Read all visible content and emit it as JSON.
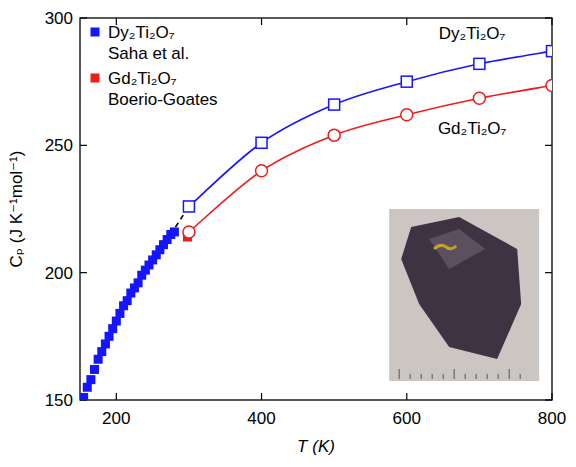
{
  "chart_data": {
    "type": "line",
    "x_label": "T (K)",
    "y_label": "Cₚ (J K⁻¹mol⁻¹)",
    "xlim": [
      150,
      800
    ],
    "ylim": [
      150,
      300
    ],
    "xticks": [
      200,
      400,
      600,
      800
    ],
    "yticks": [
      150,
      200,
      250,
      300
    ],
    "grid": false,
    "legend": "upper left",
    "series": [
      {
        "name": "Dy₂Ti₂O₇ Saha et al.",
        "type": "scatter",
        "marker": "square",
        "color": "#1515ff",
        "x": [
          155,
          160,
          165,
          170,
          175,
          180,
          185,
          190,
          195,
          200,
          205,
          210,
          215,
          220,
          225,
          230,
          235,
          240,
          245,
          250,
          255,
          260,
          265,
          270,
          275,
          280
        ],
        "values": [
          151,
          155,
          158,
          162,
          166,
          169,
          172,
          175,
          178,
          181,
          184,
          187,
          189,
          192,
          194,
          196,
          199,
          201,
          203,
          205,
          207,
          209,
          211,
          213,
          215,
          216
        ]
      },
      {
        "name": "Gd₂Ti₂O₇ Boerio-Goates",
        "type": "scatter",
        "marker": "square",
        "color": "#ee1c1c",
        "x": [
          298
        ],
        "values": [
          214
        ]
      },
      {
        "type": "line",
        "marker": "square-open",
        "color": "#1515ff",
        "x": [
          300,
          400,
          500,
          600,
          700,
          800
        ],
        "values": [
          226,
          251,
          266,
          275,
          282,
          287
        ]
      },
      {
        "type": "line",
        "marker": "circle-open",
        "color": "#ee1c1c",
        "x": [
          300,
          400,
          500,
          600,
          700,
          800
        ],
        "values": [
          216,
          240,
          254,
          262,
          268.5,
          273.5
        ]
      },
      {
        "type": "line",
        "marker": "none",
        "line_style": "dashed",
        "color": "#000000",
        "x": [
          268,
          300
        ],
        "values": [
          212,
          226
        ]
      }
    ],
    "annotations": [
      {
        "text": "Dy₂Ti₂O₇",
        "x": 690,
        "y": 294
      },
      {
        "text": "Gd₂Ti₂O₇",
        "x": 690,
        "y": 257
      }
    ]
  }
}
